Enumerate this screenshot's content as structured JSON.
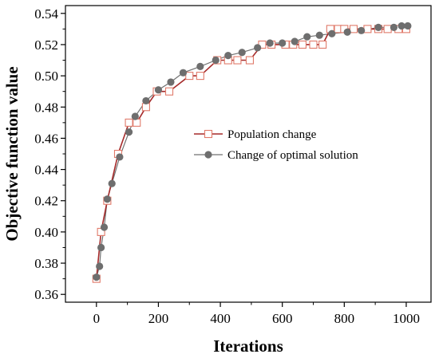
{
  "chart_data": {
    "type": "line",
    "xlabel": "Iterations",
    "ylabel": "Objective function value",
    "xlim": [
      -100,
      1080
    ],
    "ylim": [
      0.355,
      0.545
    ],
    "xticks": [
      0,
      200,
      400,
      600,
      800,
      1000
    ],
    "xtick_labels": [
      "0",
      "200",
      "400",
      "600",
      "800",
      "1000"
    ],
    "yticks": [
      0.36,
      0.38,
      0.4,
      0.42,
      0.44,
      0.46,
      0.48,
      0.5,
      0.52,
      0.54
    ],
    "ytick_labels": [
      "0.36",
      "0.38",
      "0.40",
      "0.42",
      "0.44",
      "0.46",
      "0.48",
      "0.50",
      "0.52",
      "0.54"
    ],
    "grid": false,
    "legend_position": "center-right",
    "series": [
      {
        "name": "Population change",
        "color": "#a52a2a",
        "marker": "open-square",
        "marker_color": "#e07a6a",
        "x": [
          0,
          15,
          35,
          70,
          105,
          130,
          160,
          195,
          235,
          300,
          335,
          390,
          425,
          455,
          495,
          535,
          565,
          610,
          635,
          665,
          700,
          730,
          755,
          780,
          800,
          830,
          875,
          910,
          940,
          975,
          1000
        ],
        "y": [
          0.37,
          0.4,
          0.42,
          0.45,
          0.47,
          0.47,
          0.48,
          0.49,
          0.49,
          0.5,
          0.5,
          0.51,
          0.51,
          0.51,
          0.51,
          0.52,
          0.52,
          0.52,
          0.52,
          0.52,
          0.52,
          0.52,
          0.53,
          0.53,
          0.53,
          0.53,
          0.53,
          0.53,
          0.53,
          0.53,
          0.53
        ]
      },
      {
        "name": "Change of optimal solution",
        "color": "#707070",
        "marker": "filled-circle",
        "marker_color": "#6e6e6e",
        "x": [
          0,
          10,
          15,
          25,
          35,
          50,
          75,
          105,
          125,
          160,
          200,
          240,
          280,
          335,
          385,
          425,
          470,
          520,
          560,
          600,
          640,
          680,
          720,
          760,
          810,
          855,
          910,
          960,
          985,
          1005
        ],
        "y": [
          0.371,
          0.378,
          0.39,
          0.403,
          0.421,
          0.431,
          0.448,
          0.464,
          0.474,
          0.484,
          0.491,
          0.496,
          0.502,
          0.506,
          0.51,
          0.513,
          0.515,
          0.518,
          0.521,
          0.521,
          0.522,
          0.525,
          0.526,
          0.527,
          0.528,
          0.529,
          0.531,
          0.531,
          0.532,
          0.532
        ]
      }
    ]
  }
}
